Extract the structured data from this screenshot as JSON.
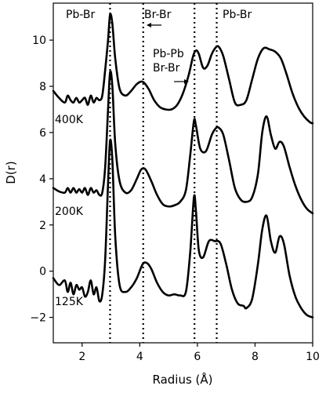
{
  "chart_data": {
    "type": "line",
    "xlabel": "Radius (Å)",
    "ylabel": "D(r)",
    "xlim": [
      1,
      10
    ],
    "ylim": [
      -3.1,
      11.6
    ],
    "xticks": [
      2,
      4,
      6,
      8,
      10
    ],
    "yticks": [
      -2,
      0,
      2,
      4,
      6,
      8,
      10
    ],
    "grid": false,
    "legend": "none",
    "series": [
      {
        "name": "400K",
        "x": [
          1.0,
          1.2,
          1.4,
          1.5,
          1.6,
          1.7,
          1.8,
          1.9,
          2.0,
          2.1,
          2.2,
          2.3,
          2.4,
          2.5,
          2.6,
          2.7,
          2.8,
          2.9,
          2.97,
          3.05,
          3.15,
          3.3,
          3.5,
          3.7,
          3.9,
          4.1,
          4.3,
          4.5,
          4.7,
          4.9,
          5.1,
          5.3,
          5.5,
          5.7,
          5.85,
          5.95,
          6.05,
          6.2,
          6.35,
          6.5,
          6.65,
          6.75,
          6.9,
          7.1,
          7.3,
          7.5,
          7.7,
          7.9,
          8.1,
          8.3,
          8.5,
          8.7,
          8.9,
          9.1,
          9.3,
          9.5,
          9.7,
          9.9,
          10.0
        ],
        "y": [
          7.8,
          7.5,
          7.3,
          7.6,
          7.4,
          7.3,
          7.5,
          7.3,
          7.4,
          7.5,
          7.2,
          7.6,
          7.3,
          7.5,
          7.4,
          7.6,
          8.7,
          10.0,
          11.1,
          10.7,
          9.2,
          7.9,
          7.6,
          7.8,
          8.1,
          8.2,
          7.9,
          7.4,
          7.1,
          7.0,
          7.0,
          7.2,
          7.7,
          8.5,
          9.3,
          9.55,
          9.4,
          8.8,
          8.9,
          9.4,
          9.7,
          9.7,
          9.3,
          8.3,
          7.3,
          7.2,
          7.4,
          8.3,
          9.2,
          9.65,
          9.6,
          9.5,
          9.2,
          8.5,
          7.7,
          7.1,
          6.7,
          6.45,
          6.4
        ]
      },
      {
        "name": "200K",
        "x": [
          1.0,
          1.2,
          1.4,
          1.5,
          1.6,
          1.7,
          1.8,
          1.9,
          2.0,
          2.1,
          2.2,
          2.3,
          2.4,
          2.5,
          2.6,
          2.7,
          2.8,
          2.9,
          2.97,
          3.05,
          3.15,
          3.3,
          3.5,
          3.7,
          3.9,
          4.05,
          4.2,
          4.4,
          4.6,
          4.8,
          5.0,
          5.2,
          5.4,
          5.6,
          5.75,
          5.88,
          5.95,
          6.1,
          6.3,
          6.5,
          6.65,
          6.75,
          6.9,
          7.1,
          7.3,
          7.5,
          7.7,
          7.9,
          8.1,
          8.25,
          8.4,
          8.55,
          8.7,
          8.85,
          9.0,
          9.2,
          9.4,
          9.6,
          9.8,
          10.0
        ],
        "y": [
          3.6,
          3.45,
          3.4,
          3.6,
          3.4,
          3.6,
          3.4,
          3.55,
          3.4,
          3.6,
          3.3,
          3.6,
          3.4,
          3.5,
          3.3,
          3.4,
          4.5,
          7.0,
          8.6,
          8.0,
          5.5,
          3.9,
          3.4,
          3.5,
          4.0,
          4.4,
          4.4,
          3.9,
          3.3,
          2.9,
          2.8,
          2.85,
          3.0,
          3.5,
          5.0,
          6.5,
          6.3,
          5.3,
          5.2,
          5.9,
          6.2,
          6.2,
          5.9,
          4.8,
          3.6,
          3.1,
          3.0,
          3.2,
          4.2,
          6.0,
          6.7,
          5.9,
          5.3,
          5.6,
          5.4,
          4.5,
          3.7,
          3.1,
          2.7,
          2.5
        ]
      },
      {
        "name": "125K",
        "x": [
          1.0,
          1.2,
          1.4,
          1.5,
          1.6,
          1.7,
          1.8,
          1.9,
          2.0,
          2.1,
          2.2,
          2.3,
          2.4,
          2.5,
          2.6,
          2.7,
          2.8,
          2.9,
          2.97,
          3.05,
          3.15,
          3.3,
          3.5,
          3.7,
          3.9,
          4.1,
          4.25,
          4.4,
          4.6,
          4.8,
          5.0,
          5.2,
          5.4,
          5.6,
          5.75,
          5.88,
          5.95,
          6.05,
          6.2,
          6.4,
          6.6,
          6.8,
          7.0,
          7.2,
          7.4,
          7.6,
          7.7,
          7.9,
          8.1,
          8.25,
          8.4,
          8.55,
          8.7,
          8.85,
          9.0,
          9.2,
          9.4,
          9.6,
          9.8,
          10.0
        ],
        "y": [
          -0.3,
          -0.6,
          -0.4,
          -0.9,
          -0.5,
          -1.0,
          -0.6,
          -0.8,
          -0.7,
          -1.1,
          -0.9,
          -0.4,
          -1.0,
          -0.7,
          -1.3,
          -1.0,
          0.5,
          3.8,
          5.65,
          4.8,
          1.5,
          -0.6,
          -0.9,
          -0.7,
          -0.3,
          0.3,
          0.35,
          0.1,
          -0.5,
          -0.9,
          -1.05,
          -1.0,
          -1.05,
          -0.9,
          0.8,
          3.2,
          2.6,
          0.9,
          0.6,
          1.3,
          1.3,
          1.2,
          0.3,
          -0.8,
          -1.4,
          -1.5,
          -1.6,
          -1.2,
          0.3,
          1.8,
          2.4,
          1.3,
          0.8,
          1.5,
          1.2,
          -0.2,
          -1.1,
          -1.6,
          -1.9,
          -2.0
        ]
      }
    ],
    "series_labels": [
      "400K",
      "200K",
      "125K"
    ],
    "vlines": [
      2.97,
      4.12,
      5.9,
      6.67
    ],
    "annotations": [
      "Pb-Br",
      "Br-Br",
      "Pb-Br",
      "Pb-Pb",
      "Br-Br"
    ]
  }
}
